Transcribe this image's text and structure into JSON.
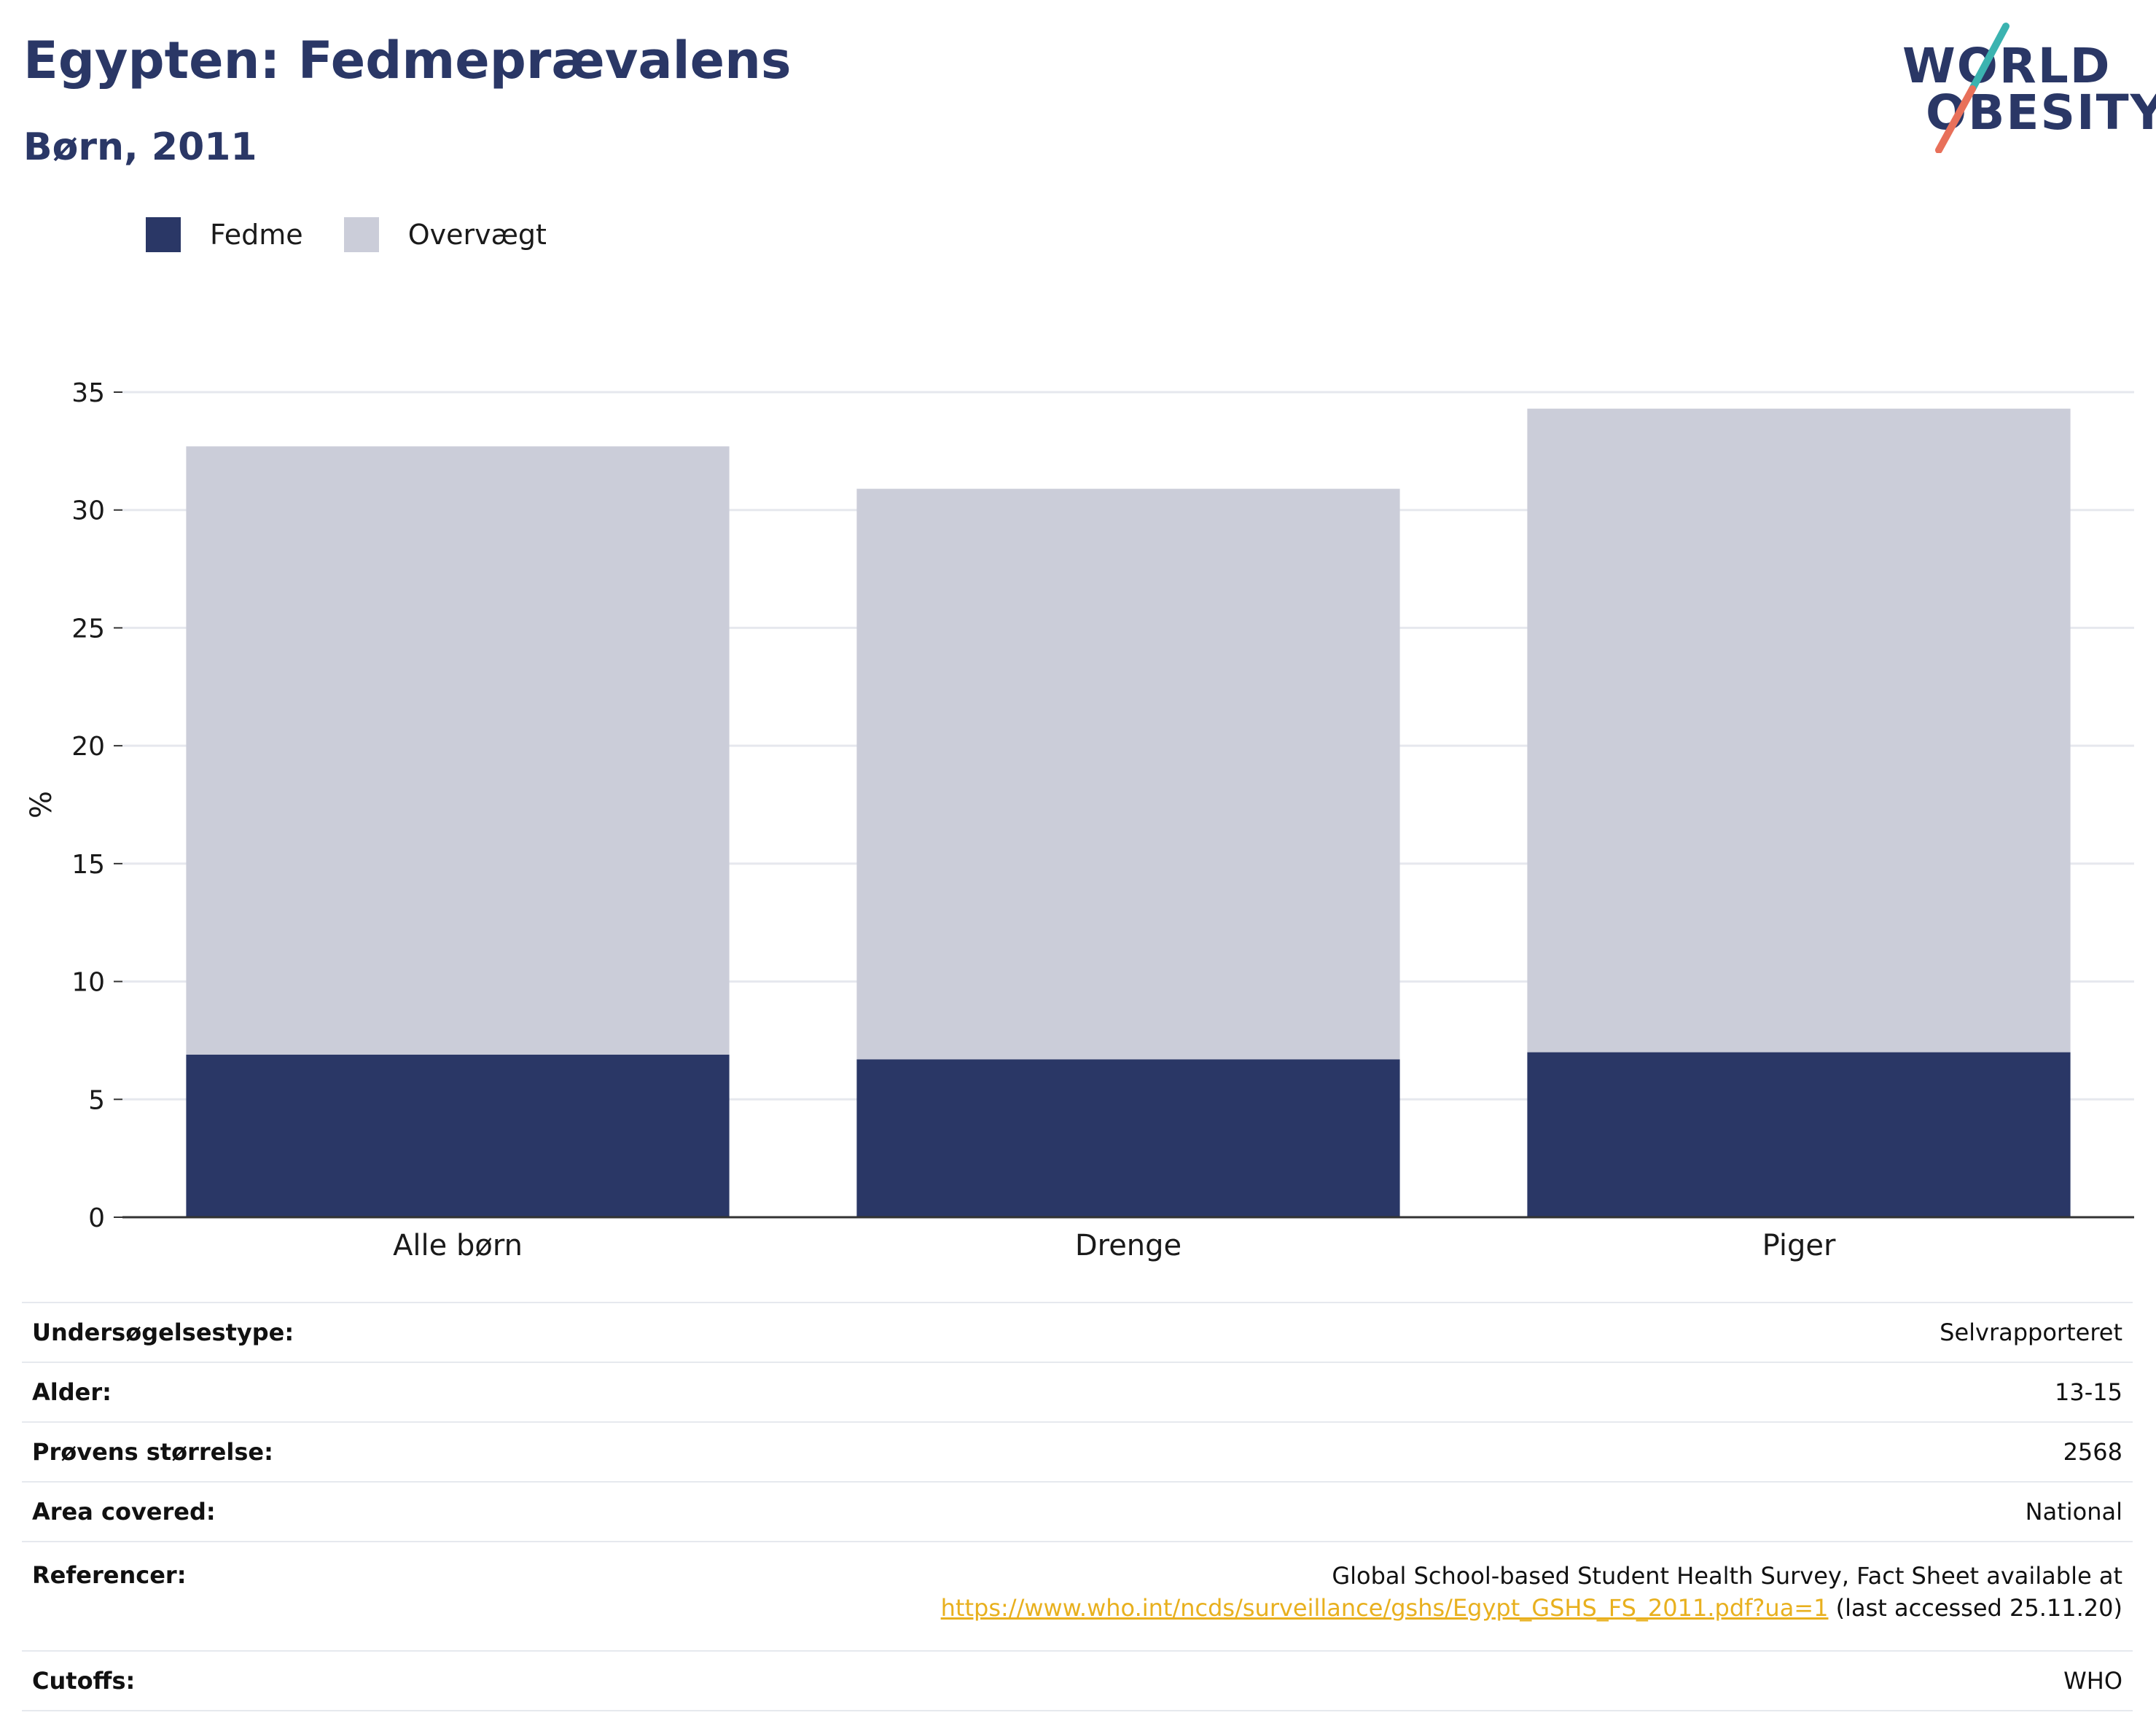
{
  "header": {
    "title": "Egypten: Fedmeprævalens",
    "subtitle": "Børn, 2011"
  },
  "logo": {
    "line1": "WORLD",
    "line2": "OBESITY",
    "colors": {
      "text": "#2a3766",
      "slash_top": "#3bb3b0",
      "slash_bottom": "#e8705a"
    }
  },
  "legend": [
    {
      "label": "Fedme",
      "color": "#2a3766"
    },
    {
      "label": "Overvægt",
      "color": "#cbcdd9"
    }
  ],
  "chart_data": {
    "type": "bar",
    "stacked": true,
    "categories": [
      "Alle børn",
      "Drenge",
      "Piger"
    ],
    "series": [
      {
        "name": "Fedme",
        "color": "#2a3766",
        "values": [
          6.9,
          6.7,
          7.0
        ]
      },
      {
        "name": "Overvægt",
        "color": "#cbcdd9",
        "values": [
          25.8,
          24.2,
          27.3
        ]
      }
    ],
    "ylabel": "%",
    "ylim": [
      0,
      35
    ],
    "yticks": [
      0,
      5,
      10,
      15,
      20,
      25,
      30,
      35
    ],
    "grid": true,
    "legend_position": "top-left"
  },
  "info": {
    "rows": [
      {
        "key": "Undersøgelsestype:",
        "value": "Selvrapporteret"
      },
      {
        "key": "Alder:",
        "value": "13-15"
      },
      {
        "key": "Prøvens størrelse:",
        "value": "2568"
      },
      {
        "key": "Area covered:",
        "value": "National"
      }
    ],
    "references": {
      "key": "Referencer:",
      "text": "Global School-based Student Health Survey, Fact Sheet available at",
      "link": "https://www.who.int/ncds/surveillance/gshs/Egypt_GSHS_FS_2011.pdf?ua=1",
      "suffix": " (last accessed 25.11.20)"
    },
    "cutoffs": {
      "key": "Cutoffs:",
      "value": "WHO"
    }
  }
}
